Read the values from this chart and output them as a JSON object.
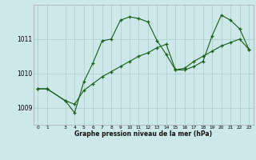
{
  "xlabel": "Graphe pression niveau de la mer (hPa)",
  "bg_color": "#cce8e8",
  "grid_color": "#aacccc",
  "line_color": "#1a5c1a",
  "x_ticks": [
    0,
    1,
    3,
    4,
    5,
    6,
    7,
    8,
    9,
    10,
    11,
    12,
    13,
    14,
    15,
    16,
    17,
    18,
    19,
    20,
    21,
    22,
    23
  ],
  "ylim": [
    1008.5,
    1012.0
  ],
  "yticks": [
    1009,
    1010,
    1011
  ],
  "line1_x": [
    0,
    1,
    3,
    4,
    5,
    6,
    7,
    8,
    9,
    10,
    11,
    12,
    13,
    14,
    15,
    16,
    17,
    18,
    19,
    20,
    21,
    22,
    23
  ],
  "line1_y": [
    1009.55,
    1009.55,
    1009.2,
    1008.85,
    1009.75,
    1010.3,
    1010.95,
    1011.0,
    1011.55,
    1011.65,
    1011.6,
    1011.5,
    1010.95,
    1010.55,
    1010.1,
    1010.1,
    1010.2,
    1010.35,
    1011.1,
    1011.7,
    1011.55,
    1011.3,
    1010.7
  ],
  "line2_x": [
    0,
    1,
    3,
    4,
    5,
    6,
    7,
    8,
    9,
    10,
    11,
    12,
    13,
    14,
    15,
    16,
    17,
    18,
    19,
    20,
    21,
    22,
    23
  ],
  "line2_y": [
    1009.55,
    1009.55,
    1009.2,
    1009.1,
    1009.5,
    1009.7,
    1009.9,
    1010.05,
    1010.2,
    1010.35,
    1010.5,
    1010.6,
    1010.75,
    1010.85,
    1010.1,
    1010.15,
    1010.35,
    1010.5,
    1010.65,
    1010.8,
    1010.9,
    1011.0,
    1010.7
  ]
}
